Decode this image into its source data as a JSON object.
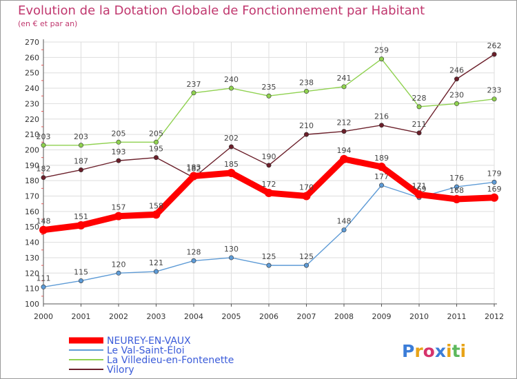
{
  "chart_data": {
    "type": "line",
    "title": "Evolution de la Dotation Globale de Fonctionnement par Habitant",
    "subtitle": "(en € et par an)",
    "xlabel": "",
    "ylabel": "",
    "ylim": [
      100,
      270
    ],
    "yticks": [
      100,
      110,
      120,
      130,
      140,
      150,
      160,
      170,
      180,
      190,
      200,
      210,
      220,
      230,
      240,
      250,
      260,
      270
    ],
    "x": [
      "2000",
      "2001",
      "2002",
      "2003",
      "2004",
      "2005",
      "2006",
      "2007",
      "2008",
      "2009",
      "2010",
      "2011",
      "2012"
    ],
    "grid": true,
    "legend_position": "bottom-left",
    "series": [
      {
        "name": "Vilory",
        "color": "#6b1f2a",
        "values": [
          182,
          187,
          193,
          195,
          182,
          202,
          190,
          210,
          212,
          216,
          211,
          246,
          262
        ],
        "labels": [
          "182",
          "187",
          "193",
          "195",
          "182",
          "202",
          "190",
          "210",
          "212",
          "216",
          "211",
          "246",
          "262"
        ]
      },
      {
        "name": "La Villedieu-en-Fontenette",
        "color": "#8fd14f",
        "values": [
          203,
          203,
          205,
          205,
          237,
          240,
          235,
          238,
          241,
          259,
          228,
          230,
          233
        ],
        "labels": [
          "203",
          "203",
          "205",
          "205",
          "237",
          "240",
          "235",
          "238",
          "241",
          "259",
          "228",
          "230",
          "233"
        ]
      },
      {
        "name": "Le Val-Saint-Éloi",
        "color": "#5e9bd6",
        "values": [
          111,
          115,
          120,
          121,
          128,
          130,
          125,
          125,
          148,
          177,
          169,
          176,
          179
        ],
        "labels": [
          "111",
          "115",
          "120",
          "121",
          "128",
          "130",
          "125",
          "125",
          "148",
          "177",
          "169",
          "176",
          "179"
        ]
      },
      {
        "name": "NEUREY-EN-VAUX",
        "color": "#ff0000",
        "values": [
          148,
          151,
          157,
          158,
          183,
          185,
          172,
          170,
          194,
          189,
          171,
          168,
          169
        ],
        "labels": [
          "148",
          "151",
          "157",
          "158",
          "183",
          "185",
          "172",
          "170",
          "194",
          "189",
          "171",
          "168",
          "169"
        ]
      }
    ],
    "legend_order": [
      "NEUREY-EN-VAUX",
      "Le Val-Saint-Éloi",
      "La Villedieu-en-Fontenette",
      "Vilory"
    ]
  },
  "brand": {
    "letters": [
      "P",
      "r",
      "o",
      "x",
      "i",
      "t",
      "i"
    ],
    "colors": [
      "#3b7dd8",
      "#e8a317",
      "#d6336c",
      "#3b7dd8",
      "#e8a317",
      "#5cb85c",
      "#e8a317"
    ]
  }
}
